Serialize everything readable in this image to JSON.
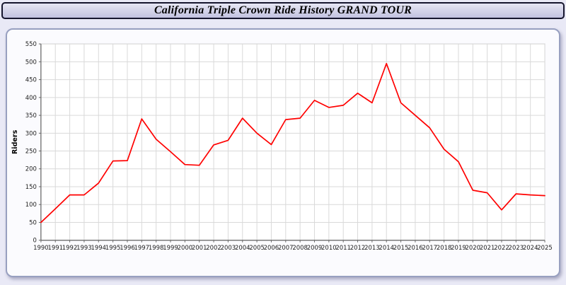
{
  "header": {
    "title": "California Triple Crown Ride History GRAND TOUR"
  },
  "chart_data": {
    "type": "line",
    "title": "California Triple Crown Ride History GRAND TOUR",
    "xlabel": "",
    "ylabel": "Riders",
    "ylim": [
      0,
      550
    ],
    "ytick_step": 50,
    "grid": true,
    "legend": "none",
    "line_color": "#ff0000",
    "x": [
      1990,
      1991,
      1992,
      1993,
      1994,
      1995,
      1996,
      1997,
      1998,
      1999,
      2000,
      2001,
      2002,
      2003,
      2004,
      2005,
      2006,
      2007,
      2008,
      2009,
      2010,
      2011,
      2012,
      2013,
      2014,
      2015,
      2016,
      2017,
      2018,
      2019,
      2020,
      2021,
      2022,
      2023,
      2024,
      2025
    ],
    "values": [
      50,
      88,
      127,
      127,
      160,
      222,
      223,
      340,
      283,
      248,
      212,
      210,
      267,
      280,
      342,
      300,
      268,
      338,
      342,
      392,
      372,
      378,
      412,
      385,
      495,
      385,
      350,
      315,
      255,
      220,
      140,
      133,
      85,
      130,
      127,
      125
    ]
  },
  "colors": {
    "grid": "#d9d9d9",
    "axis": "#666666",
    "plot_border": "#c4c4c4",
    "tick_text": "#222222"
  }
}
